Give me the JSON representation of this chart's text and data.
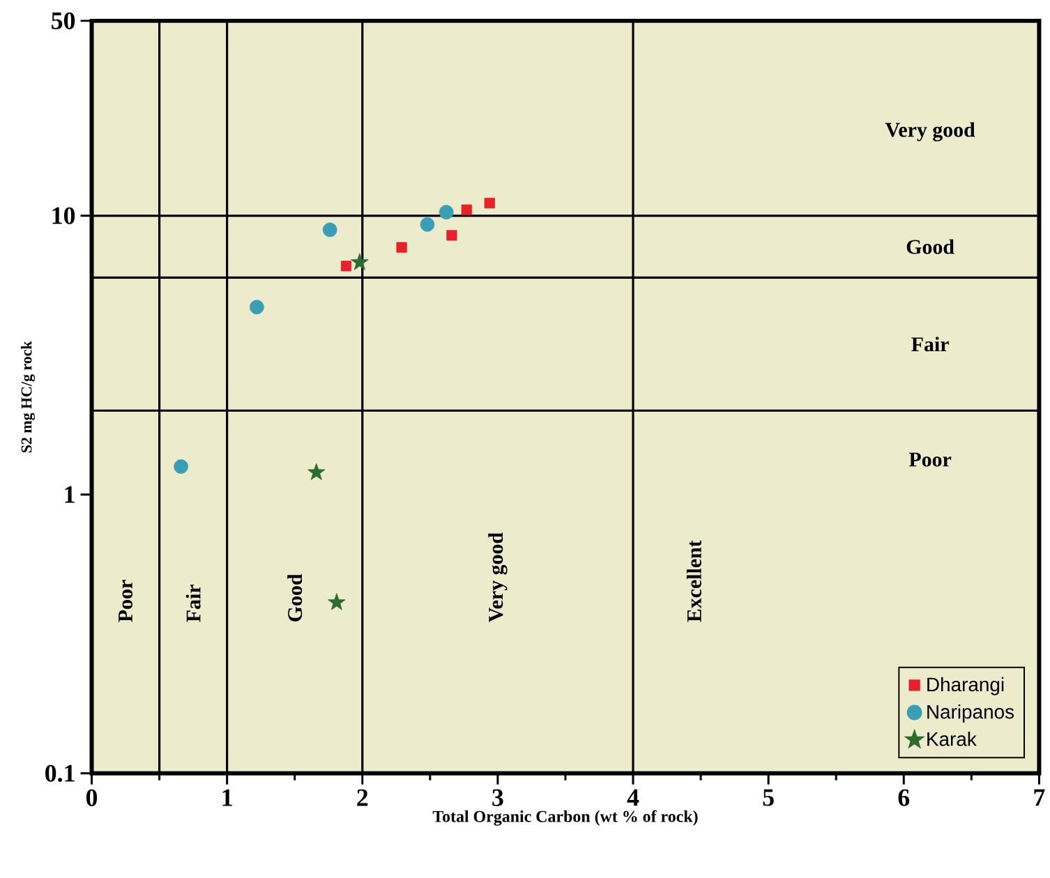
{
  "chart_data": {
    "type": "scatter",
    "xlabel": "Total Organic Carbon (wt % of rock)",
    "ylabel": "S2 mg HC/g rock",
    "log": "y",
    "xlim": [
      0,
      7
    ],
    "ylim": [
      0.1,
      50
    ],
    "xticks": [
      0,
      1,
      2,
      3,
      4,
      5,
      6,
      7
    ],
    "yticks": [
      0.1,
      1,
      10,
      50
    ],
    "legend": "bottom right",
    "series": [
      {
        "name": "Dharangi",
        "color": "#e8202a",
        "marker": "square",
        "x": [
          1.88,
          2.29,
          2.66,
          2.77,
          2.94
        ],
        "values": [
          6.6,
          7.7,
          8.5,
          10.5,
          11.1
        ]
      },
      {
        "name": "Naripanos",
        "color": "#3a9fb5",
        "marker": "circle",
        "x": [
          0.66,
          1.22,
          1.76,
          2.48,
          2.62
        ],
        "values": [
          1.26,
          4.7,
          8.9,
          9.3,
          10.3
        ]
      },
      {
        "name": "Karak",
        "color": "#2e6b2e",
        "marker": "star",
        "x": [
          1.98,
          1.66,
          1.81
        ],
        "values": [
          6.8,
          1.2,
          0.41
        ]
      }
    ],
    "ref_lines": [
      {
        "axis": "x",
        "value": 0.5
      },
      {
        "axis": "x",
        "value": 1
      },
      {
        "axis": "x",
        "value": 2
      },
      {
        "axis": "x",
        "value": 4
      },
      {
        "axis": "y",
        "value": 2
      },
      {
        "axis": "y",
        "value": 6
      },
      {
        "axis": "y",
        "value": 10
      }
    ],
    "annotations": [
      "Poor",
      "Fair",
      "Good",
      "Very good",
      "Excellent",
      "Very good",
      "Good",
      "Fair",
      "Poor"
    ]
  }
}
